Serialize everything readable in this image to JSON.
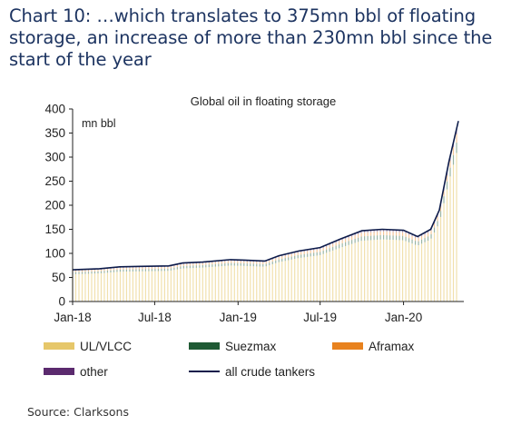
{
  "headline": "Chart 10: …which translates to 375mn bbl of floating storage, an increase of more than 230mn bbl since the start of the year",
  "source": "Source: Clarksons",
  "chart_data": {
    "type": "bar",
    "title": "Global oil in floating storage",
    "unit_label": "mn bbl",
    "ylim": [
      0,
      400
    ],
    "yticks": [
      0,
      50,
      100,
      150,
      200,
      250,
      300,
      350,
      400
    ],
    "x_range": [
      "2018-01-01",
      "2020-05-07"
    ],
    "x_ticks": [
      {
        "date": "2018-01-01",
        "label": "Jan-18"
      },
      {
        "date": "2018-07-01",
        "label": "Jul-18"
      },
      {
        "date": "2019-01-01",
        "label": "Jan-19"
      },
      {
        "date": "2019-07-01",
        "label": "Jul-19"
      },
      {
        "date": "2020-01-01",
        "label": "Jan-20"
      }
    ],
    "grid": false,
    "legend_position": "bottom",
    "colors": {
      "UL/VLCC": "#e6c76a",
      "Suezmax": "#1f5a34",
      "Aframax": "#e8821e",
      "other": "#5b2a6e",
      "all crude tankers": "#0d1b4a"
    },
    "legend": [
      {
        "name": "UL/VLCC",
        "kind": "bar",
        "color": "#e6c76a"
      },
      {
        "name": "Suezmax",
        "kind": "bar",
        "color": "#1f5a34"
      },
      {
        "name": "Aframax",
        "kind": "bar",
        "color": "#e8821e"
      },
      {
        "name": "other",
        "kind": "bar",
        "color": "#5b2a6e"
      },
      {
        "name": "all crude tankers",
        "kind": "line",
        "color": "#0d1b4a"
      }
    ],
    "total_series_name": "all crude tankers",
    "total_series": [
      {
        "date": "2018-01-01",
        "value": 66
      },
      {
        "date": "2018-03-01",
        "value": 68
      },
      {
        "date": "2018-04-15",
        "value": 72
      },
      {
        "date": "2018-06-01",
        "value": 73
      },
      {
        "date": "2018-08-01",
        "value": 74
      },
      {
        "date": "2018-09-01",
        "value": 80
      },
      {
        "date": "2018-10-15",
        "value": 82
      },
      {
        "date": "2018-12-15",
        "value": 87
      },
      {
        "date": "2019-01-15",
        "value": 86
      },
      {
        "date": "2019-03-01",
        "value": 84
      },
      {
        "date": "2019-04-01",
        "value": 95
      },
      {
        "date": "2019-05-15",
        "value": 105
      },
      {
        "date": "2019-07-01",
        "value": 112
      },
      {
        "date": "2019-08-15",
        "value": 130
      },
      {
        "date": "2019-10-01",
        "value": 147
      },
      {
        "date": "2019-11-15",
        "value": 150
      },
      {
        "date": "2020-01-01",
        "value": 148
      },
      {
        "date": "2020-02-01",
        "value": 135
      },
      {
        "date": "2020-03-01",
        "value": 150
      },
      {
        "date": "2020-03-20",
        "value": 190
      },
      {
        "date": "2020-04-10",
        "value": 290
      },
      {
        "date": "2020-05-01",
        "value": 375
      }
    ],
    "stack_share_of_total": {
      "UL/VLCC": 0.86,
      "Suezmax": 0.06,
      "Aframax": 0.05,
      "other": 0.03
    }
  }
}
